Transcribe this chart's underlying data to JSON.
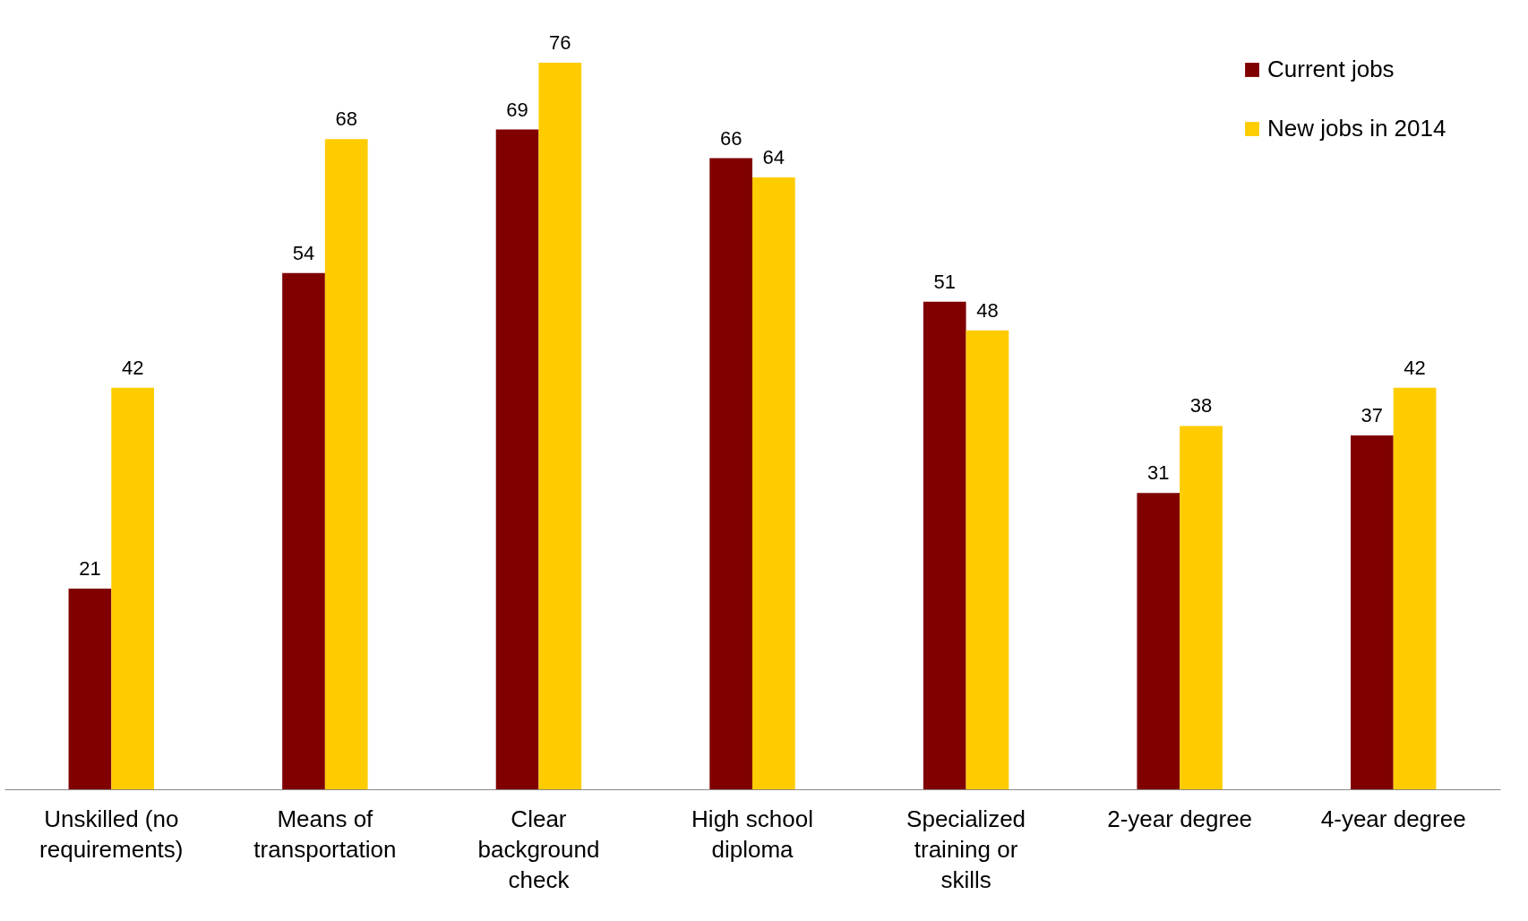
{
  "chart_data": {
    "type": "bar",
    "categories": [
      "Unskilled (no requirements)",
      "Means of transportation",
      "Clear background check",
      "High school diploma",
      "Specialized training or skills",
      "2-year degree",
      "4-year degree"
    ],
    "series": [
      {
        "name": "Current jobs",
        "color": "#800000",
        "values": [
          21,
          54,
          69,
          66,
          51,
          31,
          37
        ]
      },
      {
        "name": "New jobs in 2014",
        "color": "#ffcc00",
        "values": [
          42,
          68,
          76,
          64,
          48,
          38,
          42
        ]
      }
    ],
    "data_labels": true,
    "legend": "top right",
    "grid": false,
    "tick_labels": "x"
  }
}
